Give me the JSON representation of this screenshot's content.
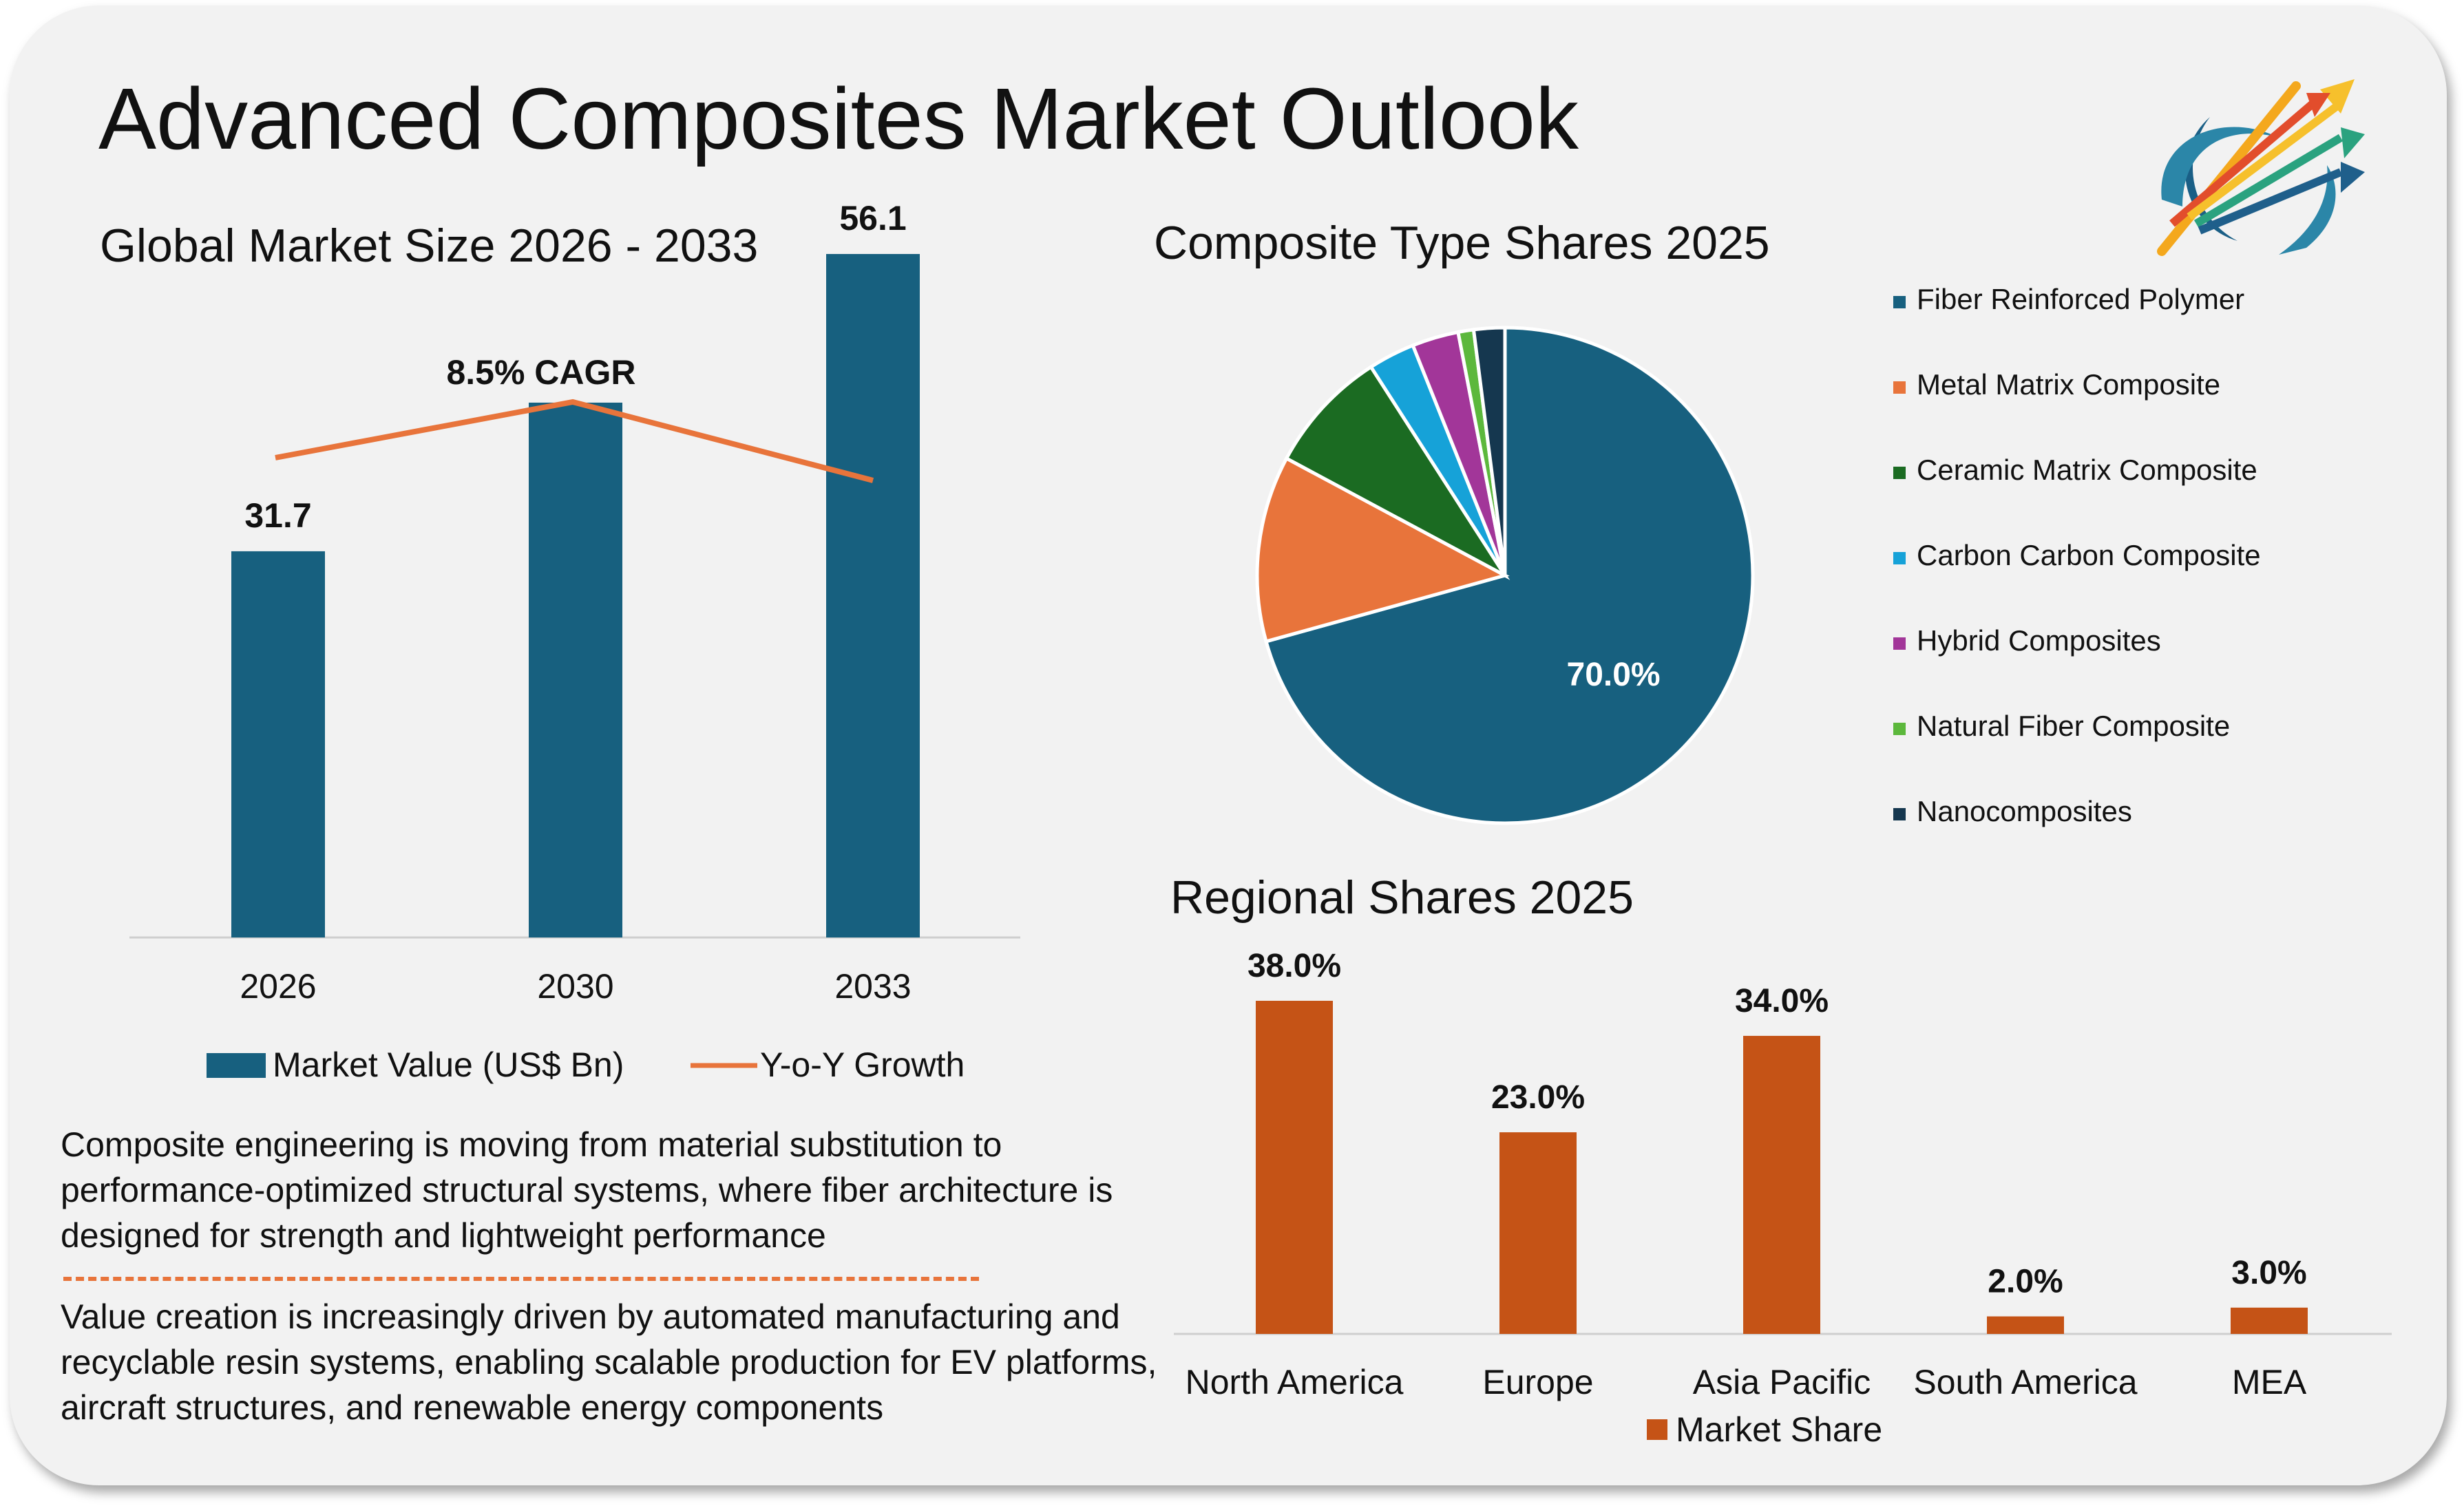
{
  "title": "Advanced Composites Market Outlook",
  "colors": {
    "market_bar": "#17607f",
    "growth_line": "#e8743b",
    "regional_bar": "#c55316",
    "divider": "#e8743b"
  },
  "logo": {
    "icon": "rising-arrows-logo-icon"
  },
  "sections": {
    "market_size_title": "Global Market Size 2026 - 2033",
    "composite_title": "Composite Type Shares 2025",
    "regional_title": "Regional Shares 2025"
  },
  "text": {
    "paragraph1": "Composite engineering is moving from material substitution to performance-optimized structural systems, where fiber architecture is designed for strength and lightweight performance",
    "paragraph2": "Value creation is increasingly driven by automated manufacturing and recyclable resin systems, enabling scalable production for EV platforms, aircraft structures, and renewable energy components"
  },
  "chart_data": [
    {
      "type": "bar",
      "title": "Global Market Size 2026 - 2033",
      "categories": [
        "2026",
        "2030",
        "2033"
      ],
      "series": [
        {
          "name": "Market Value (US$ Bn)",
          "values": [
            31.7,
            43.9,
            56.1
          ],
          "data_labels": [
            "31.7",
            "",
            "56.1"
          ]
        },
        {
          "name": "Y-o-Y Growth",
          "type": "line",
          "values": [
            null,
            null,
            null
          ]
        }
      ],
      "annotation": "8.5% CAGR",
      "ylim": [
        0,
        60
      ],
      "grid": false,
      "legend": "bottom"
    },
    {
      "type": "pie",
      "title": "Composite Type Shares 2025",
      "labels": [
        "Fiber Reinforced Polymer",
        "Metal Matrix Composite",
        "Ceramic Matrix Composite",
        "Carbon Carbon Composite",
        "Hybrid Composites",
        "Natural Fiber Composite",
        "Nanocomposites"
      ],
      "values": [
        70.0,
        12.0,
        8.0,
        3.0,
        3.0,
        1.0,
        2.0
      ],
      "colors": [
        "#17607f",
        "#e8743b",
        "#1b6b22",
        "#16a2d8",
        "#a23699",
        "#5cb83c",
        "#15374f"
      ],
      "data_labels": [
        "70.0%",
        "",
        "",
        "",
        "",
        "",
        ""
      ],
      "legend": "right"
    },
    {
      "type": "bar",
      "title": "Regional Shares 2025",
      "categories": [
        "North America",
        "Europe",
        "Asia Pacific",
        "South America",
        "MEA"
      ],
      "series": [
        {
          "name": "Market Share",
          "values": [
            38.0,
            23.0,
            34.0,
            2.0,
            3.0
          ],
          "data_labels": [
            "38.0%",
            "23.0%",
            "34.0%",
            "2.0%",
            "3.0%"
          ]
        }
      ],
      "ylim": [
        0,
        40
      ],
      "grid": false,
      "legend": "bottom"
    }
  ]
}
